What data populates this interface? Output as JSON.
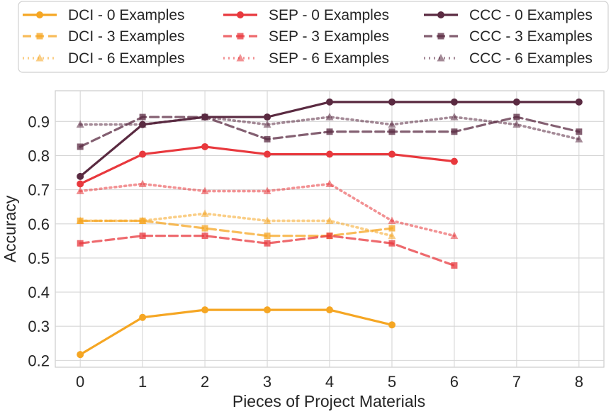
{
  "chart_data": {
    "type": "line",
    "title": "",
    "xlabel": "Pieces of Project Materials",
    "ylabel": "Accuracy",
    "xlim": [
      -0.4,
      8.4
    ],
    "ylim": [
      0.18,
      0.99
    ],
    "x_ticks": [
      0,
      1,
      2,
      3,
      4,
      5,
      6,
      7,
      8
    ],
    "y_ticks": [
      0.2,
      0.3,
      0.4,
      0.5,
      0.6,
      0.7,
      0.8,
      0.9
    ],
    "grid": true,
    "legend_position": "top, above plot, 3 columns",
    "series": [
      {
        "name": "DCI - 0 Examples",
        "color": "#f5a623",
        "style": "solid",
        "marker": "circle",
        "x": [
          0,
          1,
          2,
          3,
          4,
          5
        ],
        "y": [
          0.217,
          0.326,
          0.348,
          0.348,
          0.348,
          0.304
        ]
      },
      {
        "name": "DCI - 3 Examples",
        "color": "#f5a623",
        "style": "dashed",
        "marker": "square",
        "x": [
          0,
          1,
          2,
          3,
          4,
          5
        ],
        "y": [
          0.609,
          0.609,
          0.587,
          0.565,
          0.565,
          0.587
        ]
      },
      {
        "name": "DCI - 6 Examples",
        "color": "#f5a623",
        "style": "dotted",
        "marker": "triangle",
        "x": [
          0,
          1,
          2,
          3,
          4,
          5
        ],
        "y": [
          0.609,
          0.609,
          0.63,
          0.609,
          0.609,
          0.565
        ]
      },
      {
        "name": "SEP - 0 Examples",
        "color": "#e8383d",
        "style": "solid",
        "marker": "circle",
        "x": [
          0,
          1,
          2,
          3,
          4,
          5,
          6
        ],
        "y": [
          0.717,
          0.804,
          0.826,
          0.804,
          0.804,
          0.804,
          0.783
        ]
      },
      {
        "name": "SEP - 3 Examples",
        "color": "#e8383d",
        "style": "dashed",
        "marker": "square",
        "x": [
          0,
          1,
          2,
          3,
          4,
          5,
          6
        ],
        "y": [
          0.543,
          0.565,
          0.565,
          0.543,
          0.565,
          0.543,
          0.478
        ]
      },
      {
        "name": "SEP - 6 Examples",
        "color": "#e8383d",
        "style": "dotted",
        "marker": "triangle",
        "x": [
          0,
          1,
          2,
          3,
          4,
          5,
          6
        ],
        "y": [
          0.696,
          0.717,
          0.696,
          0.696,
          0.717,
          0.609,
          0.565
        ]
      },
      {
        "name": "CCC - 0 Examples",
        "color": "#5a2a41",
        "style": "solid",
        "marker": "circle",
        "x": [
          0,
          1,
          2,
          3,
          4,
          5,
          6,
          7,
          8
        ],
        "y": [
          0.739,
          0.891,
          0.913,
          0.913,
          0.957,
          0.957,
          0.957,
          0.957,
          0.957
        ]
      },
      {
        "name": "CCC - 3 Examples",
        "color": "#5a2a41",
        "style": "dashed",
        "marker": "square",
        "x": [
          0,
          1,
          2,
          3,
          4,
          5,
          6,
          7,
          8
        ],
        "y": [
          0.826,
          0.913,
          0.913,
          0.848,
          0.87,
          0.87,
          0.87,
          0.913,
          0.87
        ]
      },
      {
        "name": "CCC - 6 Examples",
        "color": "#5a2a41",
        "style": "dotted",
        "marker": "triangle",
        "x": [
          0,
          1,
          2,
          3,
          4,
          5,
          6,
          7,
          8
        ],
        "y": [
          0.891,
          0.891,
          0.913,
          0.891,
          0.913,
          0.891,
          0.913,
          0.891,
          0.848
        ]
      }
    ]
  }
}
